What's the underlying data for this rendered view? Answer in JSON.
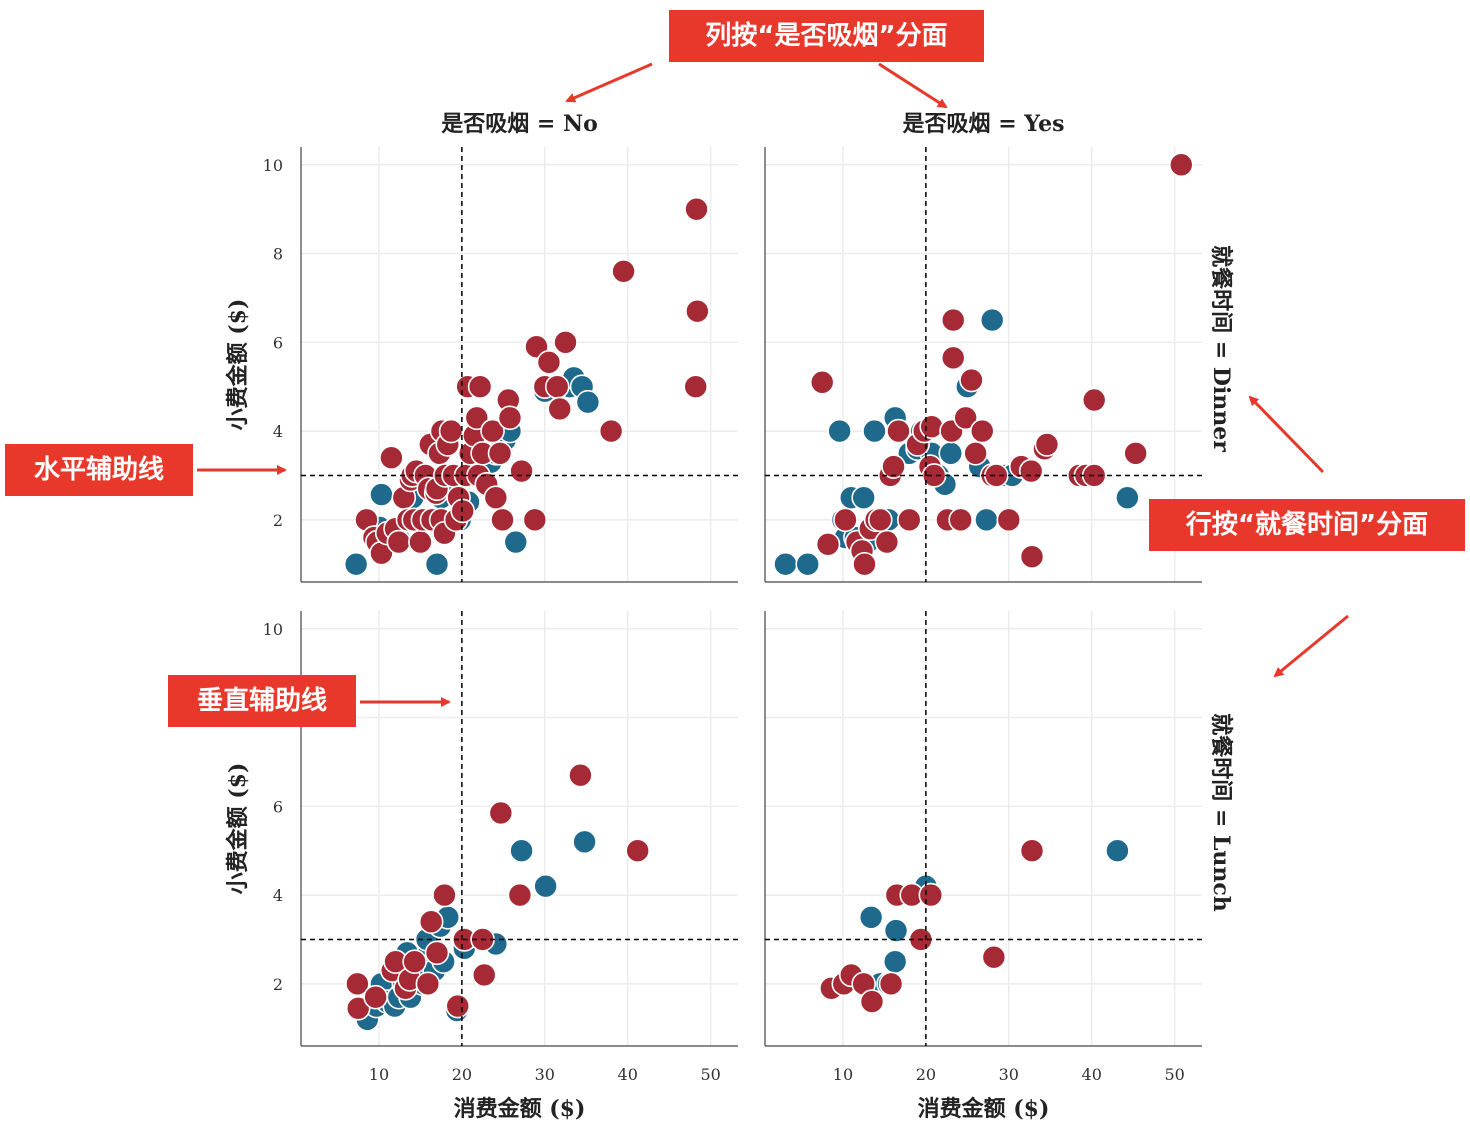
{
  "callouts": {
    "column_facet": "列按“是否吸烟”分面",
    "row_facet": "行按“就餐时间”分面",
    "horizontal_line": "水平辅助线",
    "vertical_line": "垂直辅助线"
  },
  "colors": {
    "series_a": "#1f6a8c",
    "series_b": "#a52a35",
    "callout_bg": "#e8372b",
    "arrow": "#e8372b",
    "grid": "#ececec",
    "reference_line": "#000000"
  },
  "chart_data": {
    "type": "scatter",
    "xlabel": "消费金额 ($)",
    "ylabel": "小费金额 ($)",
    "xticks": [
      10,
      20,
      30,
      40,
      50
    ],
    "yticks": [
      2,
      4,
      6,
      8,
      10
    ],
    "xlim": [
      0.6,
      53.3
    ],
    "ylim": [
      0.6,
      10.4
    ],
    "reference_lines": {
      "vertical_x": 20,
      "horizontal_y": 3
    },
    "grid": true,
    "facets": [
      {
        "row": "Dinner",
        "col": "No",
        "col_title": "是否吸烟 = No",
        "series": [
          {
            "color": "series_a",
            "points": [
              [
                7.25,
                1.0
              ],
              [
                10.07,
                1.83
              ],
              [
                10.3,
                2.57
              ],
              [
                12.5,
                1.55
              ],
              [
                14.07,
                2.5
              ],
              [
                14.83,
                3.02
              ],
              [
                16.0,
                2.0
              ],
              [
                17.0,
                1.0
              ],
              [
                17.5,
                2.5
              ],
              [
                18.3,
                2.75
              ],
              [
                19.8,
                2.0
              ],
              [
                20.8,
                2.4
              ],
              [
                22.3,
                3.5
              ],
              [
                23.5,
                3.3
              ],
              [
                24.1,
                3.5
              ],
              [
                24.8,
                3.6
              ],
              [
                25.2,
                3.8
              ],
              [
                25.8,
                4.0
              ],
              [
                26.5,
                1.5
              ],
              [
                30.0,
                4.9
              ],
              [
                33.0,
                5.0
              ],
              [
                33.5,
                5.2
              ],
              [
                34.5,
                5.0
              ],
              [
                35.2,
                4.65
              ]
            ]
          },
          {
            "color": "series_b",
            "points": [
              [
                8.5,
                2.0
              ],
              [
                9.4,
                1.6
              ],
              [
                9.8,
                1.5
              ],
              [
                10.3,
                1.25
              ],
              [
                11.0,
                1.7
              ],
              [
                11.5,
                3.4
              ],
              [
                12.0,
                1.8
              ],
              [
                12.4,
                1.5
              ],
              [
                13.0,
                2.5
              ],
              [
                13.5,
                2.0
              ],
              [
                13.8,
                2.9
              ],
              [
                14.0,
                3.0
              ],
              [
                14.2,
                2.0
              ],
              [
                14.5,
                3.1
              ],
              [
                15.0,
                1.5
              ],
              [
                15.3,
                2.0
              ],
              [
                15.6,
                3.0
              ],
              [
                16.0,
                2.7
              ],
              [
                16.2,
                3.7
              ],
              [
                16.4,
                2.0
              ],
              [
                16.9,
                2.6
              ],
              [
                17.0,
                2.7
              ],
              [
                17.3,
                3.5
              ],
              [
                17.5,
                2.0
              ],
              [
                17.6,
                4.0
              ],
              [
                17.9,
                1.7
              ],
              [
                18.0,
                3.0
              ],
              [
                18.3,
                3.7
              ],
              [
                18.7,
                4.0
              ],
              [
                19.0,
                3.0
              ],
              [
                19.3,
                2.0
              ],
              [
                19.6,
                2.5
              ],
              [
                20.1,
                2.2
              ],
              [
                20.5,
                3.0
              ],
              [
                20.7,
                5.0
              ],
              [
                21.0,
                3.5
              ],
              [
                21.5,
                3.9
              ],
              [
                21.8,
                4.3
              ],
              [
                22.0,
                3.0
              ],
              [
                22.2,
                5.0
              ],
              [
                22.5,
                3.5
              ],
              [
                23.0,
                2.8
              ],
              [
                23.7,
                4.0
              ],
              [
                24.1,
                2.5
              ],
              [
                24.6,
                3.5
              ],
              [
                24.9,
                2.0
              ],
              [
                25.6,
                4.7
              ],
              [
                25.8,
                4.3
              ],
              [
                27.2,
                3.1
              ],
              [
                28.8,
                2.0
              ],
              [
                29.0,
                5.9
              ],
              [
                30.0,
                5.0
              ],
              [
                30.5,
                5.55
              ],
              [
                31.5,
                5.0
              ],
              [
                31.8,
                4.5
              ],
              [
                32.5,
                6.0
              ],
              [
                38.0,
                4.0
              ],
              [
                39.5,
                7.6
              ],
              [
                48.2,
                5.0
              ],
              [
                48.3,
                9.0
              ],
              [
                48.4,
                6.7
              ]
            ]
          }
        ]
      },
      {
        "row": "Dinner",
        "col": "Yes",
        "col_title": "是否吸烟 = Yes",
        "row_title": "就餐时间 = Dinner",
        "series": [
          {
            "color": "series_a",
            "points": [
              [
                3.07,
                1.0
              ],
              [
                5.75,
                1.0
              ],
              [
                9.6,
                4.0
              ],
              [
                10.0,
                2.0
              ],
              [
                10.3,
                1.6
              ],
              [
                11.0,
                2.5
              ],
              [
                11.5,
                1.6
              ],
              [
                12.5,
                2.5
              ],
              [
                13.0,
                1.5
              ],
              [
                13.8,
                4.0
              ],
              [
                15.5,
                2.0
              ],
              [
                16.3,
                4.3
              ],
              [
                18.0,
                3.5
              ],
              [
                19.0,
                3.6
              ],
              [
                19.5,
                4.0
              ],
              [
                20.7,
                3.5
              ],
              [
                21.5,
                3.0
              ],
              [
                22.3,
                2.8
              ],
              [
                23.0,
                3.5
              ],
              [
                25.0,
                5.0
              ],
              [
                26.5,
                3.2
              ],
              [
                27.3,
                2.0
              ],
              [
                28.0,
                6.5
              ],
              [
                28.5,
                3.0
              ],
              [
                29.5,
                3.0
              ],
              [
                30.4,
                3.0
              ],
              [
                44.3,
                2.5
              ]
            ]
          },
          {
            "color": "series_b",
            "points": [
              [
                7.5,
                5.1
              ],
              [
                8.2,
                1.45
              ],
              [
                10.3,
                2.0
              ],
              [
                11.7,
                1.5
              ],
              [
                12.3,
                1.3
              ],
              [
                12.6,
                1.0
              ],
              [
                13.3,
                1.8
              ],
              [
                14.0,
                2.0
              ],
              [
                14.5,
                2.0
              ],
              [
                15.3,
                1.5
              ],
              [
                15.7,
                3.0
              ],
              [
                16.1,
                3.2
              ],
              [
                16.7,
                4.0
              ],
              [
                18.0,
                2.0
              ],
              [
                19.0,
                3.7
              ],
              [
                19.8,
                4.0
              ],
              [
                20.5,
                3.2
              ],
              [
                20.7,
                4.1
              ],
              [
                21.0,
                3.0
              ],
              [
                22.6,
                2.0
              ],
              [
                23.1,
                4.0
              ],
              [
                23.3,
                6.5
              ],
              [
                23.3,
                5.65
              ],
              [
                24.2,
                2.0
              ],
              [
                24.8,
                4.3
              ],
              [
                25.5,
                5.15
              ],
              [
                26.0,
                3.5
              ],
              [
                26.8,
                4.0
              ],
              [
                28.0,
                3.0
              ],
              [
                28.5,
                3.0
              ],
              [
                30.0,
                2.0
              ],
              [
                31.5,
                3.2
              ],
              [
                32.7,
                3.1
              ],
              [
                32.8,
                1.17
              ],
              [
                34.3,
                3.6
              ],
              [
                34.6,
                3.7
              ],
              [
                38.5,
                3.0
              ],
              [
                39.3,
                3.0
              ],
              [
                40.3,
                3.0
              ],
              [
                40.3,
                4.7
              ],
              [
                45.3,
                3.5
              ],
              [
                50.8,
                10.0
              ]
            ]
          }
        ]
      },
      {
        "row": "Lunch",
        "col": "No",
        "series": [
          {
            "color": "series_a",
            "points": [
              [
                8.6,
                1.2
              ],
              [
                9.7,
                1.5
              ],
              [
                10.3,
                2.0
              ],
              [
                11.0,
                1.6
              ],
              [
                11.9,
                1.5
              ],
              [
                12.4,
                1.7
              ],
              [
                13.0,
                2.0
              ],
              [
                13.4,
                2.7
              ],
              [
                13.8,
                1.7
              ],
              [
                14.3,
                2.2
              ],
              [
                15.3,
                2.0
              ],
              [
                15.7,
                2.6
              ],
              [
                15.8,
                3.0
              ],
              [
                16.2,
                2.2
              ],
              [
                16.7,
                2.3
              ],
              [
                17.4,
                3.3
              ],
              [
                17.8,
                2.5
              ],
              [
                18.3,
                3.5
              ],
              [
                19.4,
                1.4
              ],
              [
                20.3,
                2.8
              ],
              [
                22.8,
                3.0
              ],
              [
                24.1,
                2.9
              ],
              [
                27.2,
                5.0
              ],
              [
                30.1,
                4.2
              ],
              [
                34.8,
                5.2
              ]
            ]
          },
          {
            "color": "series_b",
            "points": [
              [
                7.4,
                2.0
              ],
              [
                7.5,
                1.45
              ],
              [
                9.6,
                1.7
              ],
              [
                11.6,
                2.3
              ],
              [
                12.0,
                2.5
              ],
              [
                13.2,
                1.9
              ],
              [
                13.7,
                2.1
              ],
              [
                14.3,
                2.5
              ],
              [
                15.9,
                2.0
              ],
              [
                16.3,
                3.4
              ],
              [
                17.0,
                2.7
              ],
              [
                17.9,
                4.0
              ],
              [
                19.5,
                1.5
              ],
              [
                20.3,
                3.0
              ],
              [
                22.5,
                3.0
              ],
              [
                22.7,
                2.2
              ],
              [
                24.7,
                5.85
              ],
              [
                27.0,
                4.0
              ],
              [
                34.3,
                6.7
              ],
              [
                41.2,
                5.0
              ]
            ]
          }
        ]
      },
      {
        "row": "Lunch",
        "col": "Yes",
        "row_title": "就餐时间 = Lunch",
        "series": [
          {
            "color": "series_a",
            "points": [
              [
                13.4,
                3.5
              ],
              [
                14.5,
                2.0
              ],
              [
                15.5,
                2.0
              ],
              [
                16.3,
                2.5
              ],
              [
                16.4,
                3.2
              ],
              [
                20.0,
                4.2
              ],
              [
                43.1,
                5.0
              ]
            ]
          },
          {
            "color": "series_b",
            "points": [
              [
                8.6,
                1.9
              ],
              [
                10.1,
                2.0
              ],
              [
                11.0,
                2.2
              ],
              [
                12.5,
                2.0
              ],
              [
                13.5,
                1.6
              ],
              [
                15.8,
                2.0
              ],
              [
                16.5,
                4.0
              ],
              [
                18.3,
                4.0
              ],
              [
                19.4,
                3.0
              ],
              [
                20.6,
                4.0
              ],
              [
                28.2,
                2.6
              ],
              [
                32.8,
                5.0
              ]
            ]
          }
        ]
      }
    ]
  }
}
